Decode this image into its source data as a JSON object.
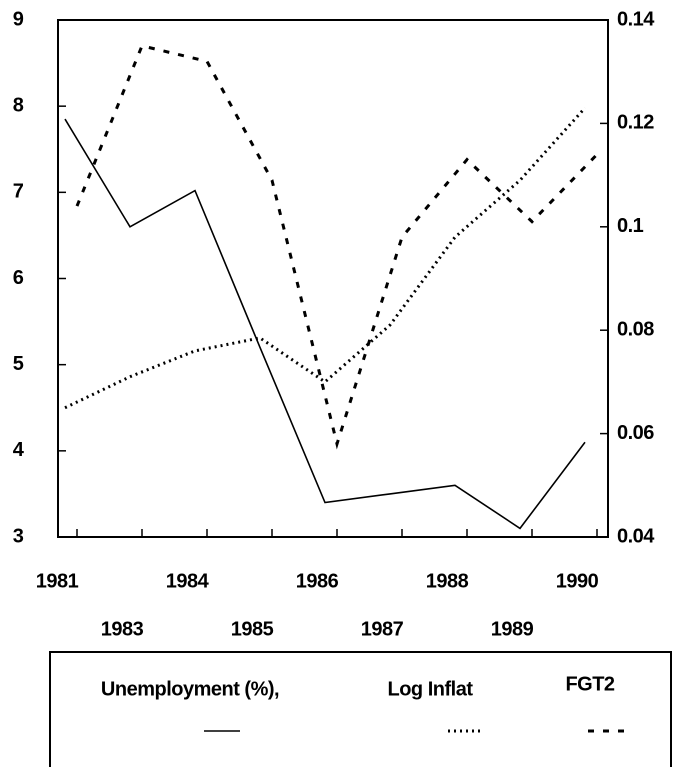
{
  "chart_data": {
    "type": "line",
    "categories": [
      "1981",
      "1983",
      "1984",
      "1985",
      "1986",
      "1987",
      "1988",
      "1989",
      "1990"
    ],
    "series": [
      {
        "name": "Unemployment (%),",
        "color": "#000000",
        "values": [
          7.85,
          6.6,
          7.02,
          5.2,
          3.4,
          3.5,
          3.6,
          3.1,
          4.1
        ]
      },
      {
        "name": "Log Inflat",
        "color": "#000000",
        "axis": "y2",
        "values": [
          0.065,
          0.071,
          0.076,
          0.0785,
          0.07,
          0.081,
          0.098,
          0.109,
          0.123
        ]
      },
      {
        "name": "FGT2",
        "color": "#000000",
        "axis": "y2",
        "values": [
          0.104,
          0.135,
          0.132,
          0.109,
          0.058,
          0.098,
          0.113,
          0.101,
          0.114
        ]
      }
    ],
    "ylim": [
      3,
      9
    ],
    "yticks": [
      3,
      4,
      5,
      6,
      7,
      8,
      9
    ],
    "y2lim": [
      0.04,
      0.14
    ],
    "y2ticks": [
      0.04,
      0.06,
      0.08,
      0.1,
      0.12,
      0.14
    ],
    "grid": false,
    "legend": "bottom"
  }
}
